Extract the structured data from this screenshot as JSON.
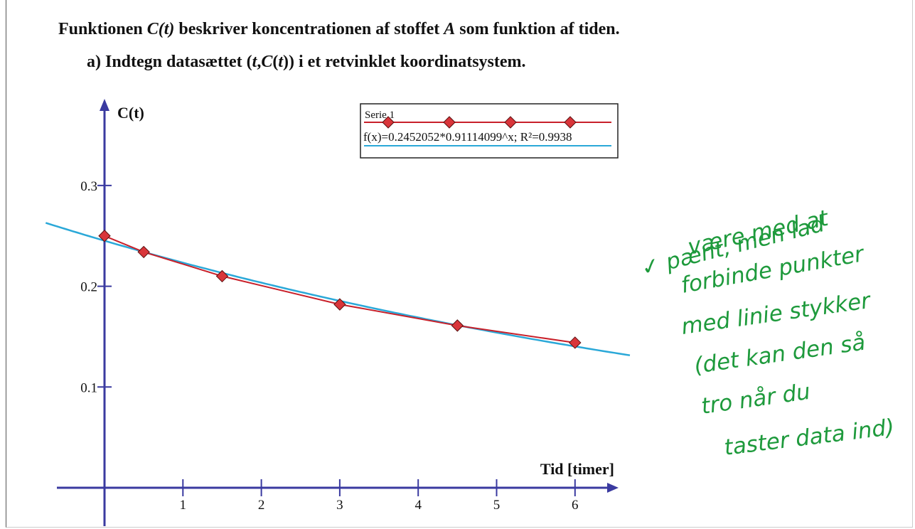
{
  "heading": {
    "line1": [
      "Funktionen ",
      "C(t)",
      " beskriver koncentrationen af stoffet ",
      "A",
      " som funktion af tiden."
    ],
    "line2": [
      "a)  Indtegn datasættet (",
      "t",
      ",",
      "C",
      "(",
      "t",
      ")) i et retvinklet koordinatsystem."
    ]
  },
  "chart_data": {
    "type": "scatter",
    "ylabel": "C(t)",
    "xlabel": "Tid [timer]",
    "xlim": [
      -0.5,
      6.6
    ],
    "ylim": [
      0,
      0.35
    ],
    "x_ticks": [
      1,
      2,
      3,
      4,
      5,
      6
    ],
    "y_ticks": [
      0.1,
      0.2,
      0.3
    ],
    "x_tick_labels": [
      "1",
      "2",
      "3",
      "4",
      "5",
      "6"
    ],
    "y_tick_labels": [
      "0.1",
      "0.2",
      "0.3"
    ],
    "grid": false,
    "legend_position": "top-center",
    "series": [
      {
        "name": "Serie 1",
        "x": [
          0,
          0.5,
          1.5,
          3,
          4.5,
          6
        ],
        "y": [
          0.25,
          0.234,
          0.21,
          0.182,
          0.161,
          0.144
        ],
        "marker_color": "#d9353a",
        "line_color": "#c8202a"
      },
      {
        "name": "f(x)=0.2452052*0.91114099^x; R²=0.9938",
        "function": {
          "a": 0.2452052,
          "b": 0.91114099
        },
        "line_color": "#2aa8d8"
      }
    ]
  },
  "colors": {
    "axis": "#3a3aa0",
    "text": "#111111",
    "annotation": "#1e9a3c"
  },
  "annotation": {
    "lines": [
      "✓  pænt, men lad",
      "være med at",
      "forbinde punkter",
      "med linie stykker",
      "(det kan den så",
      "tro når du",
      "taster data ind)"
    ]
  }
}
